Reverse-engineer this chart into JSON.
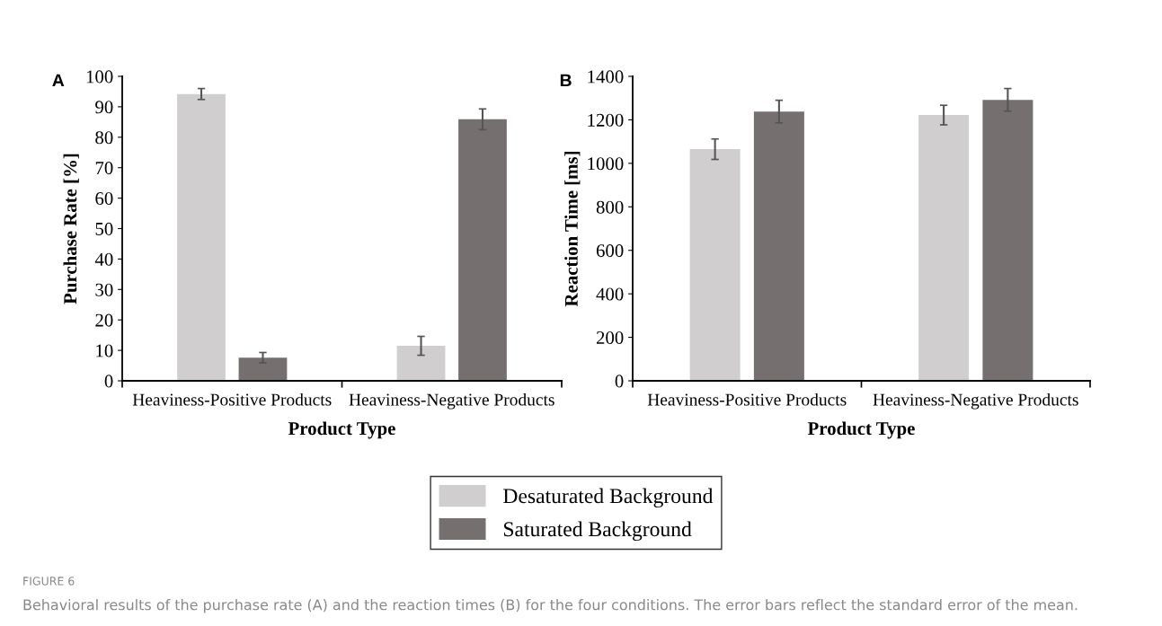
{
  "chart_data": [
    {
      "type": "bar",
      "title": "A",
      "xlabel": "Product Type",
      "ylabel": "Purchase Rate [%]",
      "categories": [
        "Heaviness-Positive Products",
        "Heaviness-Negative Products"
      ],
      "series": [
        {
          "name": "Desaturated Background",
          "color": "#d0cecf",
          "values": [
            94.2,
            11.5
          ],
          "errors": [
            1.8,
            3.1
          ]
        },
        {
          "name": "Saturated Background",
          "color": "#756f6f",
          "values": [
            7.6,
            85.9
          ],
          "errors": [
            1.7,
            3.4
          ]
        }
      ],
      "ylim": [
        0,
        100
      ],
      "yticks": [
        0,
        10,
        20,
        30,
        40,
        50,
        60,
        70,
        80,
        90,
        100
      ],
      "legend": "bottom",
      "grid": false,
      "annotations": [
        "FIGURE 6",
        "Behavioral results of the purchase rate (A) and the reaction times (B) for the four conditions. The error bars reflect the standard error of the mean."
      ]
    },
    {
      "type": "bar",
      "title": "B",
      "xlabel": "Product Type",
      "ylabel": "Reaction Time [ms]",
      "categories": [
        "Heaviness-Positive Products",
        "Heaviness-Negative Products"
      ],
      "series": [
        {
          "color": "#d0cecf",
          "values": [
            1065,
            1222
          ],
          "errors": [
            47,
            45
          ]
        },
        {
          "color": "#756f6f",
          "values": [
            1238,
            1292
          ],
          "errors": [
            52,
            52
          ]
        }
      ],
      "ylim": [
        0,
        1400
      ],
      "yticks": [
        0,
        200,
        400,
        600,
        800,
        1000,
        1200,
        1400
      ],
      "grid": false
    }
  ]
}
